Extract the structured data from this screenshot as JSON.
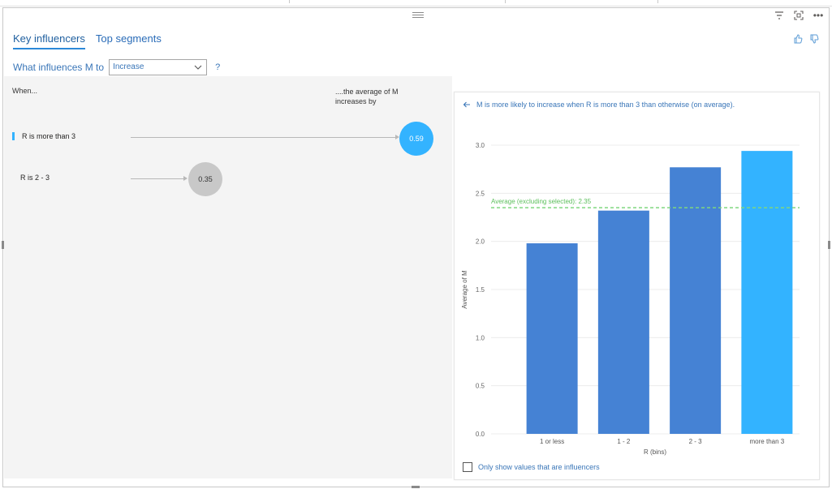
{
  "tabs": [
    {
      "label": "Key influencers",
      "active": true
    },
    {
      "label": "Top segments",
      "active": false
    }
  ],
  "header_icons": [
    "filter-icon",
    "focus-mode-icon",
    "more-options-icon"
  ],
  "feedback_icons": [
    "thumbs-up-icon",
    "thumbs-down-icon"
  ],
  "question": {
    "prefix": "What influences M to",
    "selected": "Increase",
    "help": "?"
  },
  "influencers": {
    "col_when": "When...",
    "col_avg": "....the average of M increases by",
    "rows": [
      {
        "label": "R is more than 3",
        "value": "0.59",
        "selected": true
      },
      {
        "label": "R is 2 - 3",
        "value": "0.35",
        "selected": false
      }
    ]
  },
  "detail": {
    "back_icon": "back-arrow-icon",
    "title": "M is more likely to increase when R is more than 3 than otherwise (on average).",
    "checkbox_label": "Only show values that are influencers"
  },
  "colors": {
    "accent": "#33b3ff",
    "bar": "#4582d4",
    "average_line": "#7fd67f",
    "link_text": "#3a76b8"
  },
  "chart_data": {
    "type": "bar",
    "categories": [
      "1 or less",
      "1 - 2",
      "2 - 3",
      "more than 3"
    ],
    "values": [
      1.98,
      2.32,
      2.77,
      2.94
    ],
    "highlighted": "more than 3",
    "xlabel": "R (bins)",
    "ylabel": "Average of M",
    "ylim": [
      0,
      3.0
    ],
    "yticks": [
      "0.0",
      "0.5",
      "1.0",
      "1.5",
      "2.0",
      "2.5",
      "3.0"
    ],
    "grid": true,
    "reference_line": {
      "label": "Average (excluding selected): 2.35",
      "value": 2.35
    }
  }
}
